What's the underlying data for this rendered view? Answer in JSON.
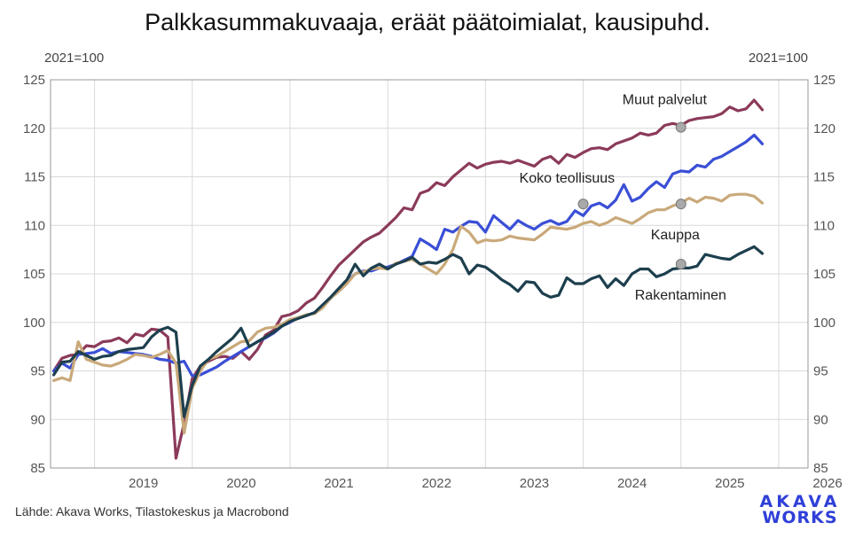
{
  "chart_data": {
    "type": "line",
    "title": "Palkkasummakuvaaja, eräät päätoimialat, kausipuhd.",
    "ylabel_left": "2021=100",
    "ylabel_right": "2021=100",
    "ylim": [
      85,
      125
    ],
    "yticks": [
      85,
      90,
      95,
      100,
      105,
      110,
      115,
      120,
      125
    ],
    "xlim": [
      2018.55,
      2026.3
    ],
    "xticks": [
      "2019",
      "2020",
      "2021",
      "2022",
      "2023",
      "2024",
      "2025",
      "2026"
    ],
    "grid": true,
    "series": [
      {
        "name": "Muut palvelut",
        "color": "#8b3a5a",
        "start": 2018.583,
        "step": 0.08333,
        "values": [
          95.0,
          96.3,
          96.6,
          96.7,
          97.6,
          97.5,
          98.0,
          98.1,
          98.4,
          97.9,
          98.8,
          98.6,
          99.3,
          99.2,
          98.5,
          86.0,
          89.6,
          94.2,
          95.5,
          96.0,
          96.4,
          96.5,
          96.3,
          97.0,
          96.2,
          97.2,
          98.7,
          99.2,
          100.6,
          100.8,
          101.2,
          102.0,
          102.5,
          103.6,
          104.8,
          105.9,
          106.7,
          107.5,
          108.3,
          108.8,
          109.2,
          110.0,
          110.8,
          111.8,
          111.6,
          113.3,
          113.6,
          114.4,
          114.1,
          115.0,
          115.7,
          116.4,
          115.9,
          116.3,
          116.5,
          116.6,
          116.4,
          116.7,
          116.4,
          116.1,
          116.8,
          117.1,
          116.4,
          117.3,
          117.0,
          117.5,
          117.9,
          118.0,
          117.8,
          118.4,
          118.7,
          119.0,
          119.5,
          119.3,
          119.5,
          120.3,
          120.5,
          120.3,
          120.8,
          121.0,
          121.1,
          121.2,
          121.5,
          122.2,
          121.8,
          122.0,
          122.9,
          121.9
        ]
      },
      {
        "name": "Koko teollisuus",
        "color": "#3a4fd6",
        "start": 2018.583,
        "step": 0.08333,
        "values": [
          95.0,
          95.8,
          95.3,
          96.7,
          96.8,
          96.9,
          97.3,
          96.8,
          97.0,
          96.9,
          96.8,
          96.7,
          96.5,
          96.2,
          96.1,
          95.8,
          96.0,
          94.5,
          94.6,
          95.0,
          95.4,
          96.0,
          96.5,
          97.0,
          97.5,
          98.0,
          98.4,
          98.9,
          99.6,
          100.0,
          100.5,
          100.7,
          101.0,
          101.6,
          102.5,
          103.4,
          104.2,
          105.0,
          105.3,
          105.3,
          105.6,
          105.7,
          106.0,
          106.4,
          106.8,
          108.6,
          108.1,
          107.5,
          109.6,
          109.3,
          109.9,
          110.4,
          110.3,
          109.3,
          111.0,
          110.3,
          109.6,
          110.5,
          110.0,
          109.6,
          110.2,
          110.5,
          110.1,
          110.4,
          111.5,
          111.0,
          112.0,
          112.3,
          111.8,
          112.6,
          114.2,
          112.5,
          112.9,
          113.8,
          114.5,
          113.9,
          115.3,
          115.6,
          115.5,
          116.2,
          116.0,
          116.8,
          117.1,
          117.6,
          118.1,
          118.6,
          119.3,
          118.4
        ]
      },
      {
        "name": "Kauppa",
        "color": "#c9a97a",
        "start": 2018.583,
        "step": 0.08333,
        "values": [
          94.0,
          94.3,
          94.0,
          98.0,
          96.2,
          95.9,
          95.6,
          95.5,
          95.8,
          96.2,
          96.7,
          96.6,
          96.4,
          96.7,
          97.1,
          95.8,
          88.6,
          93.2,
          95.0,
          96.2,
          96.5,
          97.0,
          97.5,
          98.0,
          98.1,
          99.0,
          99.4,
          99.5,
          99.8,
          100.3,
          100.5,
          100.8,
          100.9,
          101.5,
          102.5,
          103.2,
          104.0,
          105.0,
          105.2,
          105.5,
          105.6,
          105.5,
          106.1,
          106.3,
          106.5,
          106.0,
          105.5,
          105.0,
          106.0,
          107.5,
          109.9,
          109.3,
          108.2,
          108.5,
          108.4,
          108.5,
          108.9,
          108.7,
          108.6,
          108.5,
          109.1,
          109.8,
          109.7,
          109.6,
          109.8,
          110.2,
          110.4,
          110.0,
          110.3,
          110.8,
          110.5,
          110.2,
          110.7,
          111.3,
          111.6,
          111.6,
          112.0,
          112.3,
          112.8,
          112.4,
          112.9,
          112.8,
          112.5,
          113.1,
          113.2,
          113.2,
          113.0,
          112.3
        ]
      },
      {
        "name": "Rakentaminen",
        "color": "#1d3f4e",
        "start": 2018.583,
        "step": 0.08333,
        "values": [
          94.6,
          95.9,
          96.0,
          97.0,
          96.6,
          96.2,
          96.5,
          96.6,
          97.0,
          97.2,
          97.3,
          97.4,
          98.5,
          99.2,
          99.5,
          99.0,
          90.3,
          93.5,
          95.5,
          96.2,
          97.0,
          97.7,
          98.4,
          99.4,
          97.5,
          98.0,
          98.5,
          99.0,
          99.6,
          100.1,
          100.4,
          100.7,
          101.0,
          101.8,
          102.6,
          103.5,
          104.4,
          106.0,
          104.8,
          105.6,
          106.0,
          105.5,
          106.0,
          106.3,
          106.7,
          106.0,
          106.2,
          106.1,
          106.5,
          107.0,
          106.6,
          105.0,
          105.9,
          105.7,
          105.1,
          104.4,
          103.9,
          103.2,
          104.2,
          104.1,
          103.0,
          102.6,
          102.8,
          104.6,
          104.0,
          104.0,
          104.5,
          104.8,
          103.6,
          104.5,
          103.8,
          105.0,
          105.5,
          105.5,
          104.7,
          105.0,
          105.5,
          105.6,
          105.6,
          105.8,
          107.0,
          106.8,
          106.6,
          106.5,
          107.0,
          107.4,
          107.8,
          107.1
        ]
      }
    ],
    "annotations": [
      {
        "label": "Muut palvelut",
        "x": 2025.0,
        "y": 120.1
      },
      {
        "label": "Koko teollisuus",
        "x": 2024.0,
        "y": 112.2
      },
      {
        "label": "Kauppa",
        "x": 2025.0,
        "y": 112.2
      },
      {
        "label": "Rakentaminen",
        "x": 2025.0,
        "y": 106.0
      }
    ]
  },
  "footer": {
    "source": "Lähde: Akava Works, Tilastokeskus ja Macrobond",
    "logo_line1": "AKAVA",
    "logo_line2": "WORKS"
  },
  "colors": {
    "grid": "#d9d9d9",
    "axis": "#999999",
    "marker": "#a9a9a9"
  }
}
